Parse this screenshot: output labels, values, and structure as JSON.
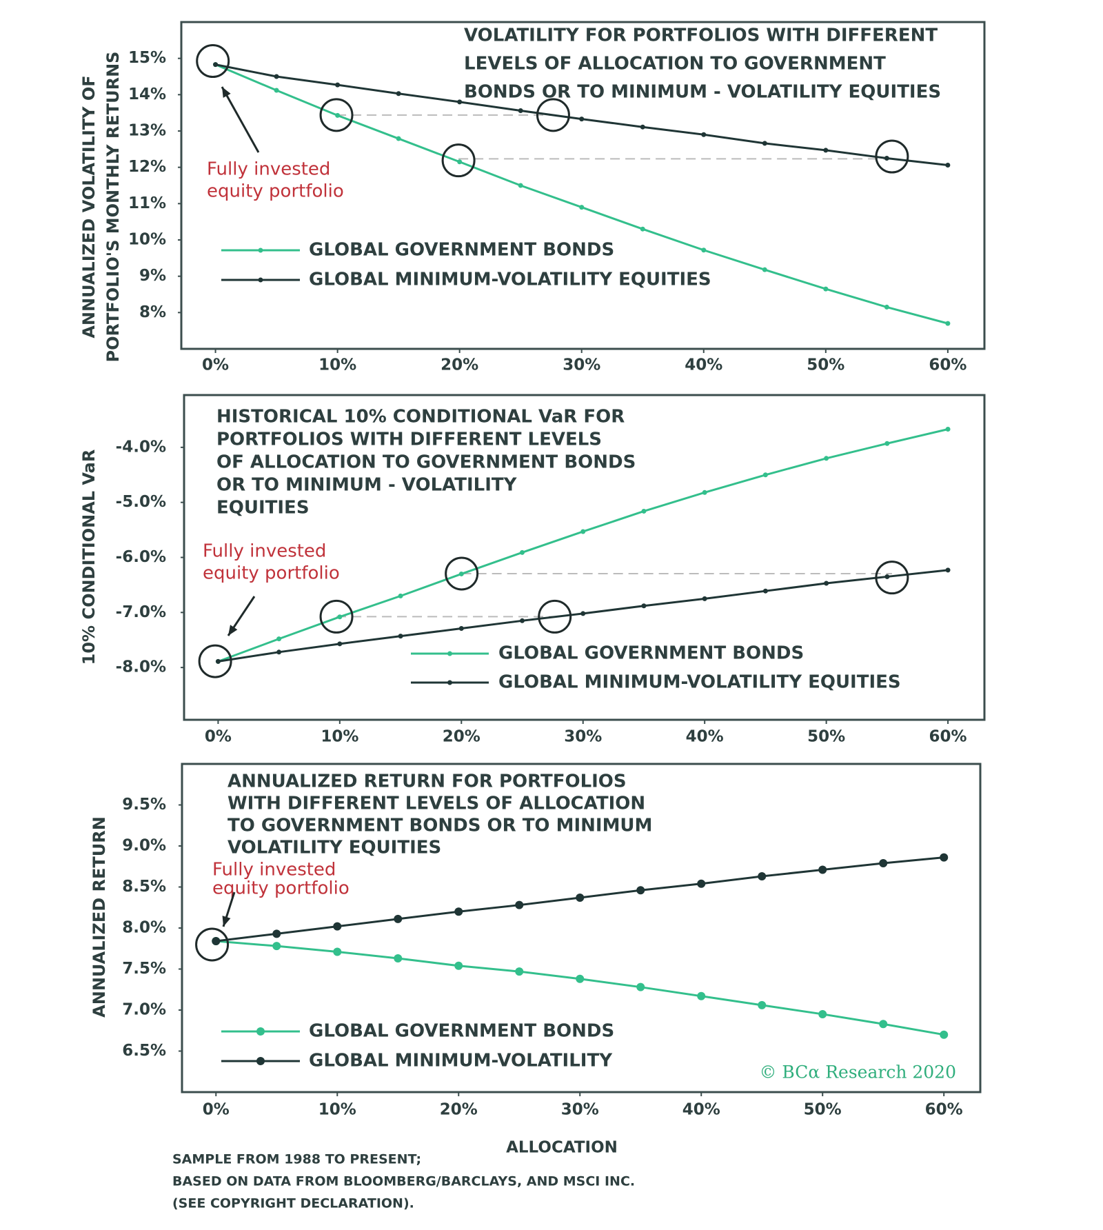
{
  "chart_data": [
    {
      "type": "line",
      "title": [
        "VOLATILITY FOR  PORTFOLIOS WITH DIFFERENT",
        "LEVELS OF ALLOCATION TO  GOVERNMENT",
        "BONDS OR TO MINIMUM - VOLATILITY EQUITIES"
      ],
      "ylabel": [
        "ANNUALIZED VOLATILITY OF",
        "PORTFOLIO'S MONTHLY RETURNS"
      ],
      "annotation": [
        "Fully invested",
        "equity portfolio"
      ],
      "x": [
        0,
        5,
        10,
        15,
        20,
        25,
        30,
        35,
        40,
        45,
        50,
        55,
        60
      ],
      "series": [
        {
          "name": "GLOBAL GOVERNMENT BONDS",
          "color": "#33bf8c",
          "values": [
            14.83,
            14.12,
            13.43,
            12.79,
            12.15,
            11.5,
            10.9,
            10.3,
            9.72,
            9.18,
            8.65,
            8.15,
            7.7
          ]
        },
        {
          "name": "GLOBAL MINIMUM-VOLATILITY EQUITIES",
          "color": "#1f3535",
          "values": [
            14.83,
            14.5,
            14.27,
            14.03,
            13.8,
            13.56,
            13.33,
            13.11,
            12.9,
            12.66,
            12.47,
            12.25,
            12.06
          ]
        }
      ],
      "xlim": [
        -2.8,
        63
      ],
      "ylim": [
        7,
        16
      ],
      "xticks": [
        {
          "value": 0,
          "label": "0%"
        },
        {
          "value": 10,
          "label": "10%"
        },
        {
          "value": 20,
          "label": "20%"
        },
        {
          "value": 30,
          "label": "30%"
        },
        {
          "value": 40,
          "label": "40%"
        },
        {
          "value": 50,
          "label": "50%"
        },
        {
          "value": 60,
          "label": "60%"
        }
      ],
      "yticks": [
        {
          "value": 8,
          "label": "8%"
        },
        {
          "value": 9,
          "label": "9%"
        },
        {
          "value": 10,
          "label": "10%"
        },
        {
          "value": 11,
          "label": "11%"
        },
        {
          "value": 12,
          "label": "12%"
        },
        {
          "value": 13,
          "label": "13%"
        },
        {
          "value": 14,
          "label": "14%"
        },
        {
          "value": 15,
          "label": "15%"
        }
      ]
    },
    {
      "type": "line",
      "title": [
        "HISTORICAL 10% CONDITIONAL VaR FOR",
        "PORTFOLIOS WITH DIFFERENT LEVELS",
        "OF ALLOCATION TO GOVERNMENT BONDS",
        "OR TO MINIMUM - VOLATILITY",
        "EQUITIES"
      ],
      "ylabel": [
        "10% CONDITIONAL VaR"
      ],
      "annotation": [
        "Fully invested",
        "equity portfolio"
      ],
      "x": [
        0,
        5,
        10,
        15,
        20,
        25,
        30,
        35,
        40,
        45,
        50,
        55,
        60
      ],
      "series": [
        {
          "name": "GLOBAL GOVERNMENT BONDS",
          "color": "#33bf8c",
          "values": [
            -7.89,
            -7.48,
            -7.08,
            -6.7,
            -6.3,
            -5.91,
            -5.53,
            -5.16,
            -4.82,
            -4.5,
            -4.2,
            -3.93,
            -3.67
          ]
        },
        {
          "name": "GLOBAL MINIMUM-VOLATILITY EQUITIES",
          "color": "#1f3535",
          "values": [
            -7.89,
            -7.72,
            -7.57,
            -7.43,
            -7.29,
            -7.15,
            -7.02,
            -6.88,
            -6.75,
            -6.61,
            -6.47,
            -6.35,
            -6.23
          ]
        }
      ],
      "xlim": [
        -2.8,
        63
      ],
      "ylim": [
        -8.95,
        -3.05
      ],
      "xticks": [
        {
          "value": 0,
          "label": "0%"
        },
        {
          "value": 10,
          "label": "10%"
        },
        {
          "value": 20,
          "label": "20%"
        },
        {
          "value": 30,
          "label": "30%"
        },
        {
          "value": 40,
          "label": "40%"
        },
        {
          "value": 50,
          "label": "50%"
        },
        {
          "value": 60,
          "label": "60%"
        }
      ],
      "yticks": [
        {
          "value": -8,
          "label": "-8.0%"
        },
        {
          "value": -7,
          "label": "-7.0%"
        },
        {
          "value": -6,
          "label": "-6.0%"
        },
        {
          "value": -5,
          "label": "-5.0%"
        },
        {
          "value": -4,
          "label": "-4.0%"
        }
      ]
    },
    {
      "type": "line",
      "title": [
        "ANNUALIZED RETURN FOR PORTFOLIOS",
        "WITH DIFFERENT LEVELS OF ALLOCATION",
        "TO GOVERNMENT BONDS OR TO MINIMUM",
        "VOLATILITY EQUITIES"
      ],
      "ylabel": [
        "ANNUALIZED RETURN"
      ],
      "annotation": [
        "Fully invested",
        "equity portfolio"
      ],
      "x": [
        0,
        5,
        10,
        15,
        20,
        25,
        30,
        35,
        40,
        45,
        50,
        55,
        60
      ],
      "series": [
        {
          "name": "GLOBAL GOVERNMENT BONDS",
          "color": "#33bf8c",
          "values": [
            7.84,
            7.78,
            7.71,
            7.63,
            7.54,
            7.47,
            7.38,
            7.28,
            7.17,
            7.06,
            6.95,
            6.83,
            6.7
          ]
        },
        {
          "name": "GLOBAL MINIMUM-VOLATILITY",
          "color": "#1f3535",
          "values": [
            7.84,
            7.93,
            8.02,
            8.11,
            8.2,
            8.28,
            8.37,
            8.46,
            8.54,
            8.63,
            8.71,
            8.79,
            8.86
          ]
        }
      ],
      "xlim": [
        -2.8,
        63
      ],
      "ylim": [
        6,
        10
      ],
      "xticks": [
        {
          "value": 0,
          "label": "0%"
        },
        {
          "value": 10,
          "label": "10%"
        },
        {
          "value": 20,
          "label": "20%"
        },
        {
          "value": 30,
          "label": "30%"
        },
        {
          "value": 40,
          "label": "40%"
        },
        {
          "value": 50,
          "label": "50%"
        },
        {
          "value": 60,
          "label": "60%"
        }
      ],
      "yticks": [
        {
          "value": 6.5,
          "label": "6.5%"
        },
        {
          "value": 7,
          "label": "7.0%"
        },
        {
          "value": 7.5,
          "label": "7.5%"
        },
        {
          "value": 8,
          "label": "8.0%"
        },
        {
          "value": 8.5,
          "label": "8.5%"
        },
        {
          "value": 9,
          "label": "9.0%"
        },
        {
          "value": 9.5,
          "label": "9.5%"
        }
      ]
    }
  ],
  "x_label": "ALLOCATION",
  "copyright": "© BCα Research 2020",
  "footnote": [
    "SAMPLE FROM 1988 TO PRESENT;",
    "BASED ON  DATA FROM BLOOMBERG/BARCLAYS, AND MSCI INC.",
    "(SEE COPYRIGHT DECLARATION)."
  ]
}
